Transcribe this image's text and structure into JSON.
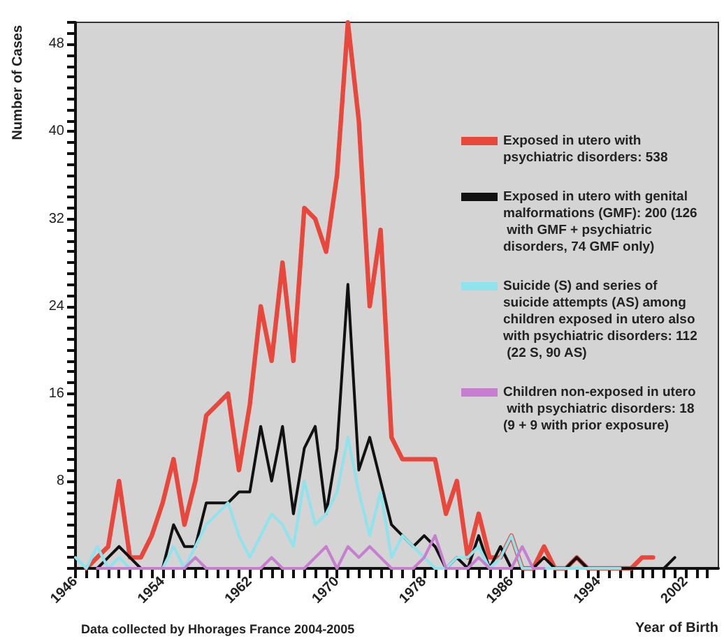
{
  "chart_data": {
    "type": "line",
    "xlabel": "Year of Birth",
    "ylabel": "Number of Cases",
    "annotations": [
      "Data collected by Hhorages France 2004-2005"
    ],
    "x": [
      1946,
      1947,
      1948,
      1949,
      1950,
      1951,
      1952,
      1953,
      1954,
      1955,
      1956,
      1957,
      1958,
      1959,
      1960,
      1961,
      1962,
      1963,
      1964,
      1965,
      1966,
      1967,
      1968,
      1969,
      1970,
      1971,
      1972,
      1973,
      1974,
      1975,
      1976,
      1977,
      1978,
      1979,
      1980,
      1981,
      1982,
      1983,
      1984,
      1985,
      1986,
      1987,
      1988,
      1989,
      1990,
      1991,
      1992,
      1993,
      1994,
      1995,
      1996,
      1997,
      1998,
      1999,
      2000,
      2001
    ],
    "series": [
      {
        "name": "Exposed in utero with psychiatric disorders: 538",
        "color": "#e8473c",
        "values": [
          null,
          0,
          1,
          2,
          8,
          1,
          1,
          3,
          6,
          10,
          4,
          8,
          14,
          15,
          16,
          9,
          15,
          24,
          19,
          28,
          19,
          33,
          32,
          29,
          36,
          50,
          41,
          24,
          31,
          12,
          10,
          10,
          10,
          10,
          5,
          8,
          1,
          5,
          1,
          1,
          3,
          0,
          0,
          2,
          0,
          0,
          1,
          0,
          0,
          0,
          0,
          0,
          1,
          1,
          null,
          null
        ]
      },
      {
        "name": "Exposed in utero with genital malformations (GMF): 200 (126 with GMF + psychiatric disorders, 74 GMF only)",
        "color": "#111111",
        "values": [
          null,
          0,
          0,
          1,
          2,
          1,
          0,
          0,
          0,
          4,
          2,
          2,
          6,
          6,
          6,
          7,
          7,
          13,
          8,
          13,
          5,
          11,
          13,
          5,
          11,
          26,
          9,
          12,
          8,
          4,
          3,
          2,
          3,
          2,
          0,
          1,
          0,
          3,
          0,
          2,
          0,
          0,
          0,
          1,
          0,
          0,
          1,
          0,
          0,
          0,
          0,
          0,
          0,
          0,
          0,
          1
        ]
      },
      {
        "name": "Suicide (S) and series of suicide attempts (AS) among children exposed in utero also with psychiatric disorders: 112 (22 S, 90 AS)",
        "color": "#8ee3ec",
        "values": [
          1,
          0,
          2,
          0,
          1,
          0,
          0,
          0,
          0,
          2,
          0,
          2,
          4,
          5,
          6,
          3,
          1,
          3,
          5,
          4,
          2,
          8,
          4,
          5,
          7,
          12,
          7,
          3,
          7,
          1,
          3,
          2,
          1,
          0,
          0,
          1,
          1,
          2,
          0,
          1,
          3,
          0,
          0,
          0,
          0,
          0,
          0,
          0,
          0,
          0,
          0,
          null,
          null,
          null,
          null,
          null
        ]
      },
      {
        "name": "Children non-exposed in utero with psychiatric disorders: 18 (9 + 9 with prior exposure)",
        "color": "#c77dd0",
        "values": [
          null,
          null,
          0,
          0,
          0,
          0,
          0,
          0,
          0,
          0,
          0,
          1,
          0,
          0,
          0,
          0,
          0,
          0,
          1,
          0,
          0,
          0,
          1,
          2,
          0,
          2,
          1,
          2,
          1,
          0,
          0,
          0,
          1,
          3,
          0,
          0,
          0,
          1,
          0,
          0,
          0,
          2,
          0,
          0,
          null,
          null,
          null,
          null,
          null,
          null,
          null,
          null,
          null,
          null,
          null,
          null
        ]
      }
    ],
    "xlim": [
      1946,
      2005
    ],
    "xticks": [
      1946,
      {
        "value": 1947,
        "label": null
      },
      {
        "value": 1948,
        "label": null
      },
      {
        "value": 1949,
        "label": null
      },
      {
        "value": 1950,
        "label": null
      },
      {
        "value": 1951,
        "label": null
      },
      {
        "value": 1952,
        "label": null
      },
      {
        "value": 1953,
        "label": null
      },
      1954,
      {
        "value": 1955,
        "label": null
      },
      {
        "value": 1956,
        "label": null
      },
      {
        "value": 1957,
        "label": null
      },
      {
        "value": 1958,
        "label": null
      },
      {
        "value": 1959,
        "label": null
      },
      {
        "value": 1960,
        "label": null
      },
      {
        "value": 1961,
        "label": null
      },
      1962,
      {
        "value": 1963,
        "label": null
      },
      {
        "value": 1964,
        "label": null
      },
      {
        "value": 1965,
        "label": null
      },
      {
        "value": 1966,
        "label": null
      },
      {
        "value": 1967,
        "label": null
      },
      {
        "value": 1968,
        "label": null
      },
      {
        "value": 1969,
        "label": null
      },
      1970,
      {
        "value": 1971,
        "label": null
      },
      {
        "value": 1972,
        "label": null
      },
      {
        "value": 1973,
        "label": null
      },
      {
        "value": 1974,
        "label": null
      },
      {
        "value": 1975,
        "label": null
      },
      {
        "value": 1976,
        "label": null
      },
      {
        "value": 1977,
        "label": null
      },
      1978,
      {
        "value": 1979,
        "label": null
      },
      {
        "value": 1980,
        "label": null
      },
      {
        "value": 1981,
        "label": null
      },
      {
        "value": 1982,
        "label": null
      },
      {
        "value": 1983,
        "label": null
      },
      {
        "value": 1984,
        "label": null
      },
      {
        "value": 1985,
        "label": null
      },
      1986,
      {
        "value": 1987,
        "label": null
      },
      {
        "value": 1988,
        "label": null
      },
      {
        "value": 1989,
        "label": null
      },
      {
        "value": 1990,
        "label": null
      },
      {
        "value": 1991,
        "label": null
      },
      {
        "value": 1992,
        "label": null
      },
      {
        "value": 1993,
        "label": null
      },
      1994,
      {
        "value": 1995,
        "label": null
      },
      {
        "value": 1996,
        "label": null
      },
      {
        "value": 1997,
        "label": null
      },
      {
        "value": 1998,
        "label": null
      },
      {
        "value": 1999,
        "label": null
      },
      {
        "value": 2000,
        "label": null
      },
      {
        "value": 2001,
        "label": null
      },
      2002,
      {
        "value": 2003,
        "label": null
      },
      {
        "value": 2004,
        "label": null
      }
    ],
    "ylim": [
      0,
      50
    ],
    "yticks": [
      {
        "value": 0,
        "label": null
      },
      {
        "value": 1,
        "label": null
      },
      {
        "value": 2,
        "label": null
      },
      {
        "value": 3,
        "label": null
      },
      {
        "value": 4,
        "label": null
      },
      {
        "value": 5,
        "label": null
      },
      {
        "value": 6,
        "label": null
      },
      {
        "value": 7,
        "label": null
      },
      8,
      {
        "value": 9,
        "label": null
      },
      {
        "value": 10,
        "label": null
      },
      {
        "value": 11,
        "label": null
      },
      {
        "value": 12,
        "label": null
      },
      {
        "value": 13,
        "label": null
      },
      {
        "value": 14,
        "label": null
      },
      {
        "value": 15,
        "label": null
      },
      16,
      {
        "value": 17,
        "label": null
      },
      {
        "value": 18,
        "label": null
      },
      {
        "value": 19,
        "label": null
      },
      {
        "value": 20,
        "label": null
      },
      {
        "value": 21,
        "label": null
      },
      {
        "value": 22,
        "label": null
      },
      {
        "value": 23,
        "label": null
      },
      24,
      {
        "value": 25,
        "label": null
      },
      {
        "value": 26,
        "label": null
      },
      {
        "value": 27,
        "label": null
      },
      {
        "value": 28,
        "label": null
      },
      {
        "value": 29,
        "label": null
      },
      {
        "value": 30,
        "label": null
      },
      {
        "value": 31,
        "label": null
      },
      32,
      {
        "value": 33,
        "label": null
      },
      {
        "value": 34,
        "label": null
      },
      {
        "value": 35,
        "label": null
      },
      {
        "value": 36,
        "label": null
      },
      {
        "value": 37,
        "label": null
      },
      {
        "value": 38,
        "label": null
      },
      {
        "value": 39,
        "label": null
      },
      40,
      {
        "value": 41,
        "label": null
      },
      {
        "value": 42,
        "label": null
      },
      {
        "value": 43,
        "label": null
      },
      {
        "value": 44,
        "label": null
      },
      {
        "value": 45,
        "label": null
      },
      {
        "value": 46,
        "label": null
      },
      {
        "value": 47,
        "label": null
      },
      48,
      {
        "value": 49,
        "label": null
      },
      {
        "value": 50,
        "label": null
      }
    ],
    "grid": false,
    "legend": "right",
    "marker": "none",
    "line_style": "solid"
  }
}
